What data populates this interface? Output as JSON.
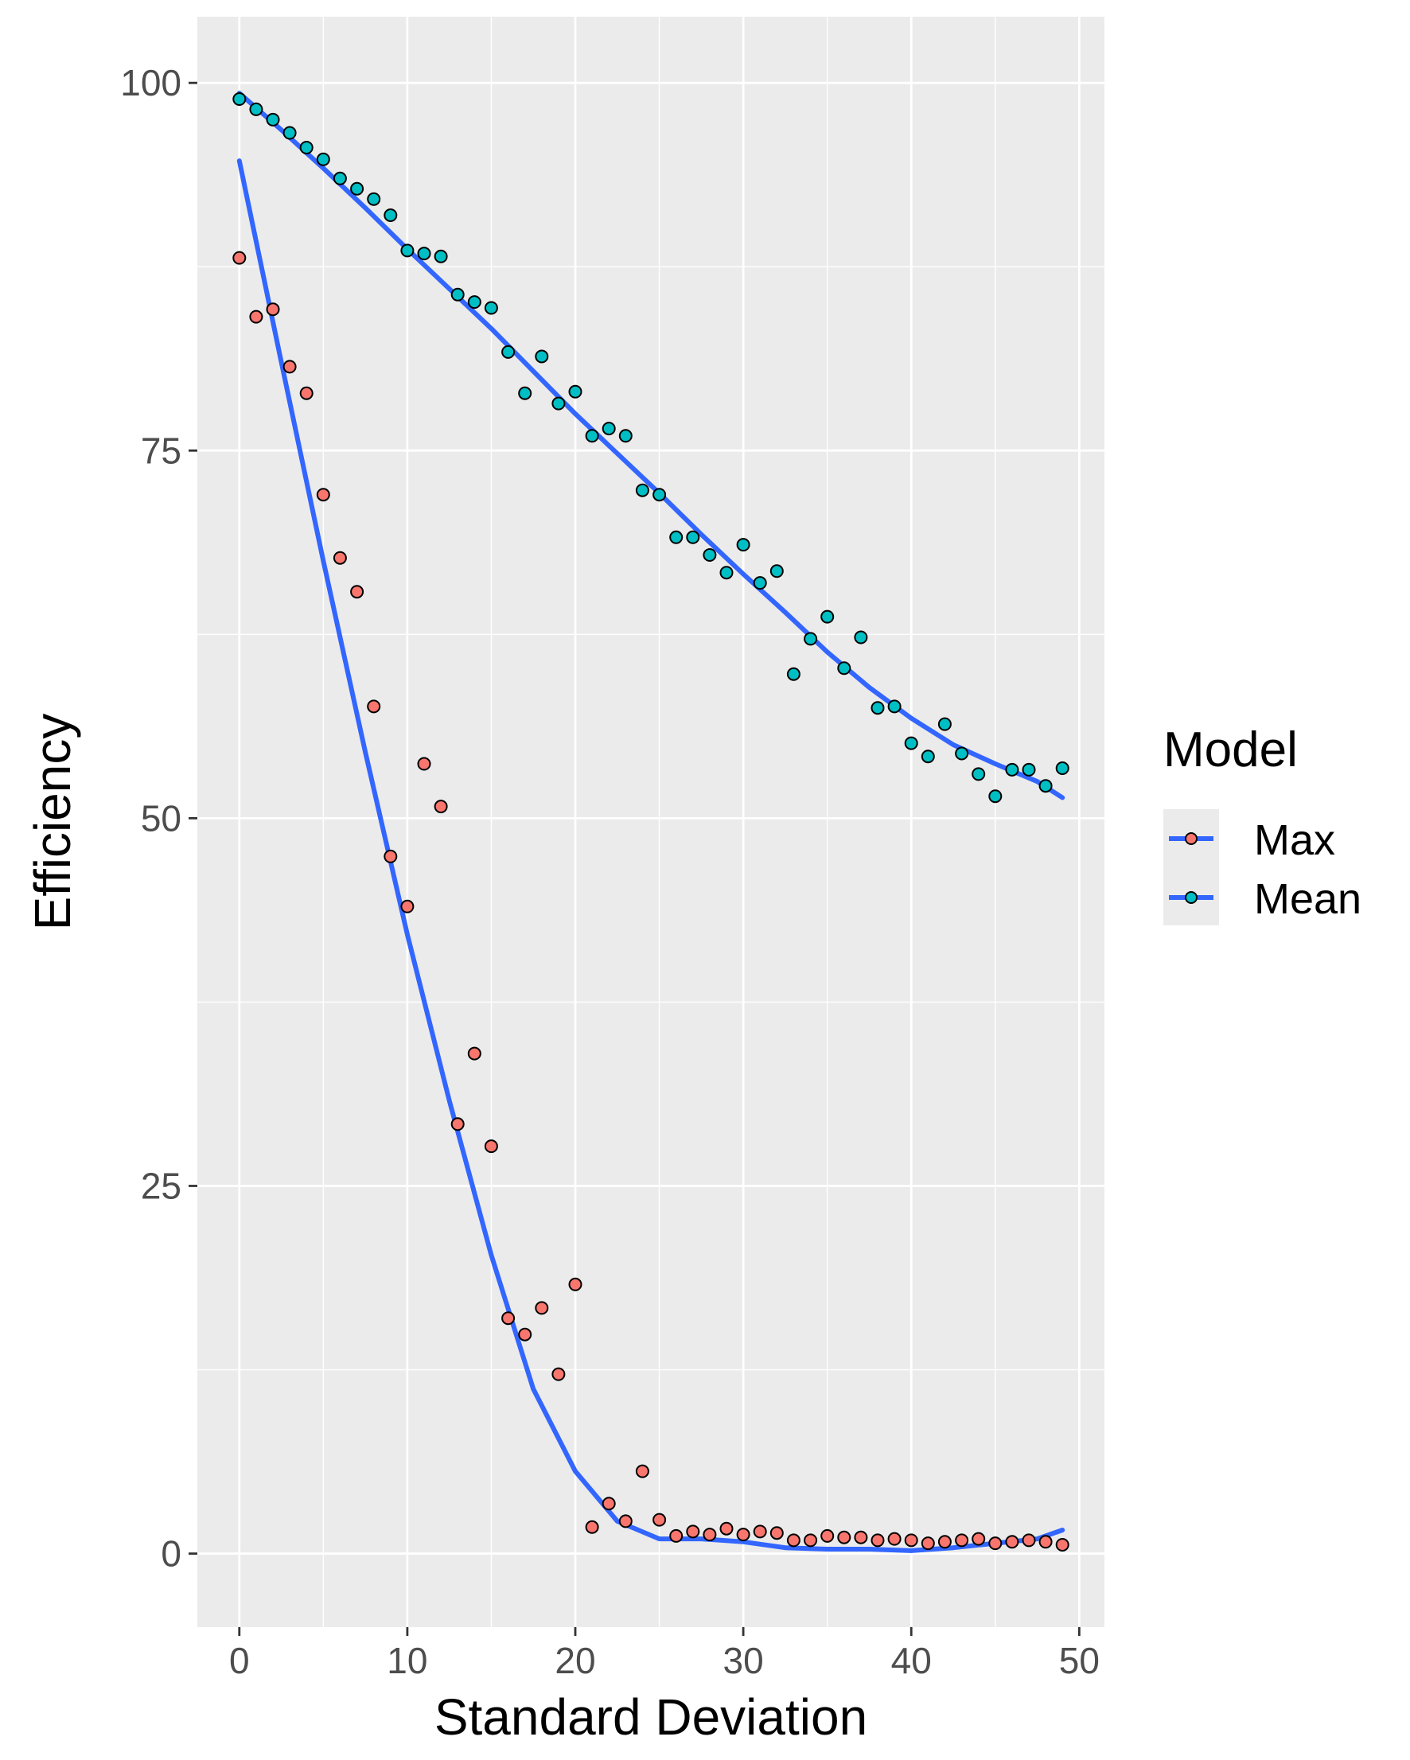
{
  "chart_data": {
    "type": "scatter",
    "xlabel": "Standard Deviation",
    "ylabel": "Efficiency",
    "xlim": [
      -2.5,
      51.5
    ],
    "ylim": [
      -5,
      104.5
    ],
    "x_ticks": [
      0,
      10,
      20,
      30,
      40,
      50
    ],
    "y_ticks": [
      0,
      25,
      50,
      75,
      100
    ],
    "grid": true,
    "legend": {
      "title": "Model",
      "placement": "right",
      "entries": [
        "Max",
        "Mean"
      ]
    },
    "colors": {
      "Max": "#f8766d",
      "Mean": "#00bfc4",
      "smooth_line": "#3366ff",
      "panel_background": "#ebebeb",
      "grid": "#ffffff"
    },
    "x": [
      0,
      1,
      2,
      3,
      4,
      5,
      6,
      7,
      8,
      9,
      10,
      11,
      12,
      13,
      14,
      15,
      16,
      17,
      18,
      19,
      20,
      21,
      22,
      23,
      24,
      25,
      26,
      27,
      28,
      29,
      30,
      31,
      32,
      33,
      34,
      35,
      36,
      37,
      38,
      39,
      40,
      41,
      42,
      43,
      44,
      45,
      46,
      47,
      48,
      49
    ],
    "series": [
      {
        "name": "Max",
        "values": [
          88.1,
          84.1,
          84.6,
          80.7,
          78.9,
          72.0,
          67.7,
          65.4,
          57.6,
          47.4,
          44.0,
          53.7,
          50.8,
          29.2,
          34.0,
          27.7,
          16.0,
          14.9,
          16.7,
          12.2,
          18.3,
          1.8,
          3.4,
          2.2,
          5.6,
          2.3,
          1.2,
          1.5,
          1.3,
          1.7,
          1.3,
          1.5,
          1.4,
          0.9,
          0.9,
          1.2,
          1.1,
          1.1,
          0.9,
          1.0,
          0.9,
          0.7,
          0.8,
          0.9,
          1.0,
          0.7,
          0.8,
          0.9,
          0.8,
          0.6
        ]
      },
      {
        "name": "Mean",
        "values": [
          98.9,
          98.2,
          97.5,
          96.6,
          95.6,
          94.8,
          93.5,
          92.8,
          92.1,
          91.0,
          88.6,
          88.4,
          88.2,
          85.6,
          85.1,
          84.7,
          81.7,
          78.9,
          81.4,
          78.2,
          79.0,
          76.0,
          76.5,
          76.0,
          72.3,
          72.0,
          69.1,
          69.1,
          67.9,
          66.7,
          68.6,
          66.0,
          66.8,
          59.8,
          62.2,
          63.7,
          60.2,
          62.3,
          57.5,
          57.6,
          55.1,
          54.2,
          56.4,
          54.4,
          53.0,
          51.5,
          53.3,
          53.3,
          52.2,
          53.4
        ]
      }
    ],
    "smooth_lines": [
      {
        "series": "Max",
        "x": [
          0,
          2.5,
          5,
          7.5,
          10,
          12.5,
          15,
          17.5,
          20,
          22.5,
          25,
          27.5,
          30,
          32.5,
          35,
          37.5,
          40,
          42.5,
          45,
          47.5,
          49
        ],
        "y": [
          94.7,
          81.0,
          67.5,
          54.5,
          42.1,
          30.8,
          20.3,
          11.2,
          5.6,
          2.2,
          1.0,
          1.0,
          0.8,
          0.4,
          0.3,
          0.3,
          0.2,
          0.4,
          0.7,
          1.0,
          1.6
        ]
      },
      {
        "series": "Mean",
        "x": [
          0,
          2.5,
          5,
          7.5,
          10,
          12.5,
          15,
          17.5,
          20,
          22.5,
          25,
          27.5,
          30,
          32.5,
          35,
          37.5,
          40,
          42.5,
          45,
          47.5,
          49
        ],
        "y": [
          99.3,
          96.8,
          94.2,
          91.5,
          88.7,
          86.0,
          83.3,
          80.4,
          77.5,
          74.8,
          72.1,
          69.3,
          66.6,
          64.0,
          61.3,
          58.9,
          56.8,
          55.0,
          53.7,
          52.5,
          51.4
        ]
      }
    ]
  }
}
